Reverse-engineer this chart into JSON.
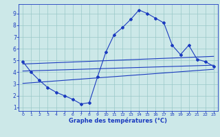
{
  "hours": [
    0,
    1,
    2,
    3,
    4,
    5,
    6,
    7,
    8,
    9,
    10,
    11,
    12,
    13,
    14,
    15,
    16,
    17,
    18,
    19,
    20,
    21,
    22,
    23
  ],
  "temp_curve": [
    4.9,
    4.0,
    3.3,
    2.7,
    2.3,
    2.0,
    1.7,
    1.3,
    1.4,
    3.6,
    5.7,
    7.2,
    7.8,
    8.5,
    9.3,
    9.0,
    8.6,
    8.2,
    6.3,
    5.5,
    6.3,
    5.1,
    4.9,
    4.5
  ],
  "line1_x": [
    0,
    23
  ],
  "line1_y": [
    4.7,
    5.35
  ],
  "line2_x": [
    0,
    23
  ],
  "line2_y": [
    4.1,
    4.6
  ],
  "line3_x": [
    0,
    23
  ],
  "line3_y": [
    3.05,
    4.25
  ],
  "line_color": "#1a3abf",
  "bg_color": "#cce8e8",
  "grid_color": "#99c8c8",
  "xlabel": "Graphe des températures (°C)",
  "xlim": [
    -0.5,
    23.5
  ],
  "ylim": [
    0.7,
    9.8
  ],
  "yticks": [
    1,
    2,
    3,
    4,
    5,
    6,
    7,
    8,
    9
  ],
  "xticks": [
    0,
    1,
    2,
    3,
    4,
    5,
    6,
    7,
    8,
    9,
    10,
    11,
    12,
    13,
    14,
    15,
    16,
    17,
    18,
    19,
    20,
    21,
    22,
    23
  ]
}
